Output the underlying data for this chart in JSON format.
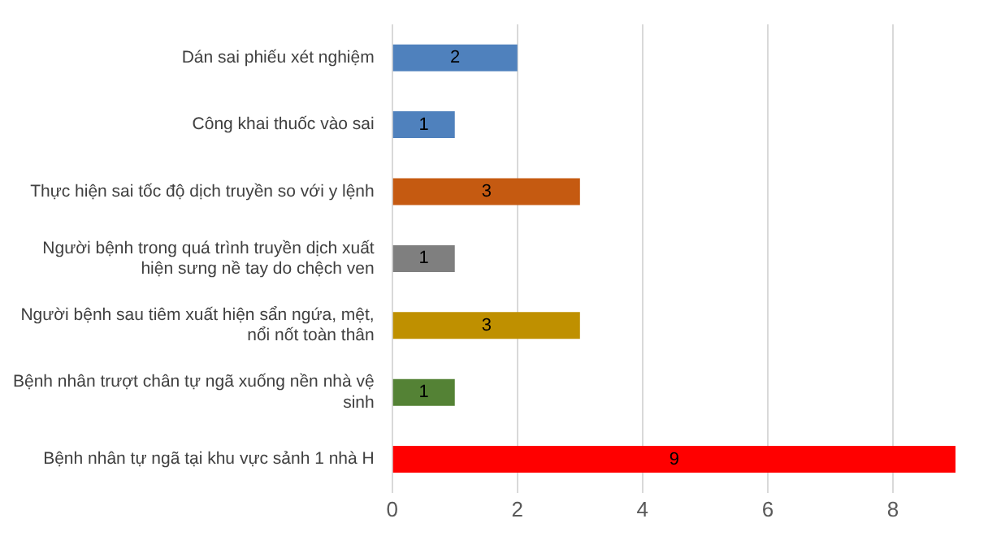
{
  "chart_data": {
    "type": "bar",
    "orientation": "horizontal",
    "categories": [
      "Dán sai phiếu xét nghiệm",
      "Công khai thuốc vào sai",
      "Thực hiện sai tốc độ dịch truyền so với y lệnh",
      "Người bệnh trong quá trình truyền dịch xuất hiện sưng nề tay do chệch ven",
      "Người bệnh sau tiêm xuất hiện sẩn ngứa, mệt, nổi nốt toàn thân",
      "Bệnh nhân trượt chân tự ngã xuống nền nhà vệ sinh",
      "Bệnh nhân tự ngã tại khu vực sảnh 1 nhà H"
    ],
    "values": [
      2,
      1,
      3,
      1,
      3,
      1,
      9
    ],
    "colors": [
      "#4f81bd",
      "#4f81bd",
      "#c55a11",
      "#7f7f7f",
      "#bf9000",
      "#548235",
      "#ff0000"
    ],
    "xlim": [
      0,
      9
    ],
    "xticks": [
      0,
      2,
      4,
      6,
      8
    ],
    "grid": "x",
    "data_labels": true
  }
}
